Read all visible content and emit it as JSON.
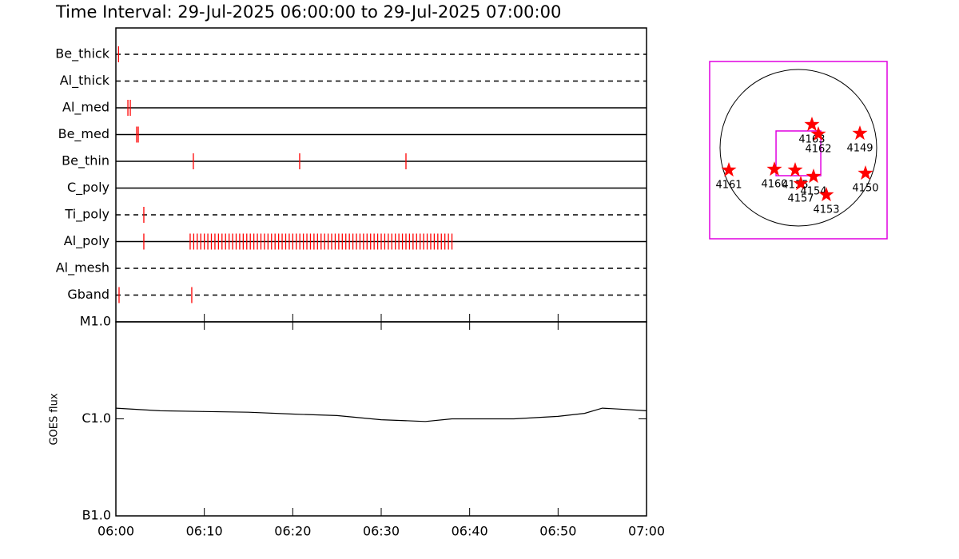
{
  "title": "Time Interval: 29-Jul-2025 06:00:00 to 29-Jul-2025 07:00:00",
  "chart_data": [
    {
      "type": "timeline",
      "color": "#ff0000",
      "xlim": [
        0,
        60
      ],
      "rows": [
        {
          "name": "Be_thick",
          "style": "dashed",
          "times": [
            0.3
          ]
        },
        {
          "name": "Al_thick",
          "style": "dashed",
          "times": []
        },
        {
          "name": "Al_med",
          "style": "solid",
          "times": [
            1.36,
            1.63
          ]
        },
        {
          "name": "Be_med",
          "style": "solid",
          "times": [
            2.35,
            2.53
          ]
        },
        {
          "name": "Be_thin",
          "style": "solid",
          "times": [
            8.76,
            20.78,
            32.8
          ]
        },
        {
          "name": "C_poly",
          "style": "solid",
          "times": []
        },
        {
          "name": "Ti_poly",
          "style": "dashed",
          "times": [
            3.16
          ]
        },
        {
          "name": "Al_poly",
          "style": "solid",
          "times": [
            3.16,
            8.4,
            8.8,
            9.2,
            9.6,
            10,
            10.4,
            10.8,
            11.2,
            11.6,
            12,
            12.4,
            12.8,
            13.2,
            13.6,
            14,
            14.4,
            14.8,
            15.2,
            15.6,
            16,
            16.4,
            16.8,
            17.2,
            17.6,
            18,
            18.4,
            18.8,
            19.2,
            19.6,
            20,
            20.4,
            20.8,
            21.2,
            21.6,
            22,
            22.4,
            22.8,
            23.2,
            23.6,
            24,
            24.4,
            24.8,
            25.2,
            25.6,
            26,
            26.4,
            26.8,
            27.2,
            27.6,
            28,
            28.4,
            28.8,
            29.2,
            29.6,
            30,
            30.4,
            30.8,
            31.2,
            31.6,
            32,
            32.4,
            32.8,
            33.2,
            33.6,
            34,
            34.4,
            34.8,
            35.2,
            35.6,
            36,
            36.4,
            36.8,
            37.2,
            37.6,
            38
          ]
        },
        {
          "name": "Al_mesh",
          "style": "dashed",
          "times": []
        },
        {
          "name": "Gband",
          "style": "dashed",
          "times": [
            0.36,
            8.58
          ]
        }
      ]
    },
    {
      "type": "line",
      "y_label": "GOES flux",
      "color": "#000000",
      "log_y": true,
      "x": [
        0,
        5,
        10,
        15,
        20,
        25,
        30,
        35,
        38,
        45,
        50,
        53,
        55,
        57,
        60
      ],
      "values": [
        1.29e-06,
        1.21e-06,
        1.19e-06,
        1.17e-06,
        1.12e-06,
        1.08e-06,
        9.8e-07,
        9.4e-07,
        1e-06,
        1e-06,
        1.06e-06,
        1.14e-06,
        1.29e-06,
        1.26e-06,
        1.21e-06
      ],
      "xlim": [
        0,
        60
      ],
      "xticks": [
        {
          "value": 0,
          "label": "06:00"
        },
        {
          "value": 10,
          "label": "06:10"
        },
        {
          "value": 20,
          "label": "06:20"
        },
        {
          "value": 30,
          "label": "06:30"
        },
        {
          "value": 40,
          "label": "06:40"
        },
        {
          "value": 50,
          "label": "06:50"
        },
        {
          "value": 60,
          "label": "07:00"
        }
      ],
      "ylim": [
        1e-07,
        1e-05
      ],
      "yticks": [
        {
          "value": 1e-05,
          "label": "M1.0"
        },
        {
          "value": 1e-06,
          "label": "C1.0"
        },
        {
          "value": 1e-07,
          "label": "B1.0"
        }
      ]
    },
    {
      "type": "map",
      "color": "#ff0000",
      "fov_color": "#e000e0",
      "xlim": [
        -1100,
        1100
      ],
      "ylim": [
        -1100,
        1100
      ],
      "fov": {
        "x": [
          -277,
          278
        ],
        "y": [
          -317,
          238
        ]
      },
      "regions": [
        {
          "name": "4161",
          "x": -862,
          "y": -248
        },
        {
          "name": "4160",
          "x": -297,
          "y": -238
        },
        {
          "name": "4155",
          "x": -40,
          "y": -248
        },
        {
          "name": "4157",
          "x": 30,
          "y": -416
        },
        {
          "name": "4154",
          "x": 188,
          "y": -327
        },
        {
          "name": "4153",
          "x": 347,
          "y": -555
        },
        {
          "name": "4163",
          "x": 168,
          "y": 317
        },
        {
          "name": "4162",
          "x": 248,
          "y": 198
        },
        {
          "name": "4149",
          "x": 763,
          "y": 208
        },
        {
          "name": "4150",
          "x": 832,
          "y": -287
        }
      ]
    }
  ]
}
